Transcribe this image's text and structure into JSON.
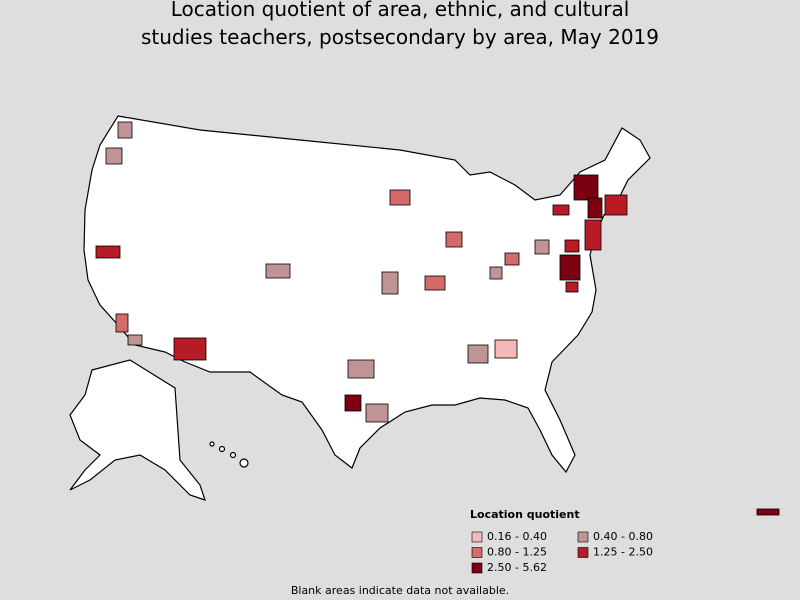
{
  "title": [
    "Location quotient of area, ethnic, and cultural",
    "studies teachers, postsecondary by area, May 2019"
  ],
  "legend": {
    "title": "Location quotient",
    "items": [
      {
        "label": "0.16 - 0.40",
        "color": "#f4b8b8"
      },
      {
        "label": "0.40 - 0.80",
        "color": "#c09494"
      },
      {
        "label": "0.80 - 1.25",
        "color": "#d46a6a"
      },
      {
        "label": "1.25 - 2.50",
        "color": "#b71c26"
      },
      {
        "label": "2.50 - 5.62",
        "color": "#7a0012"
      }
    ]
  },
  "footnote": "Blank areas indicate data not available."
}
